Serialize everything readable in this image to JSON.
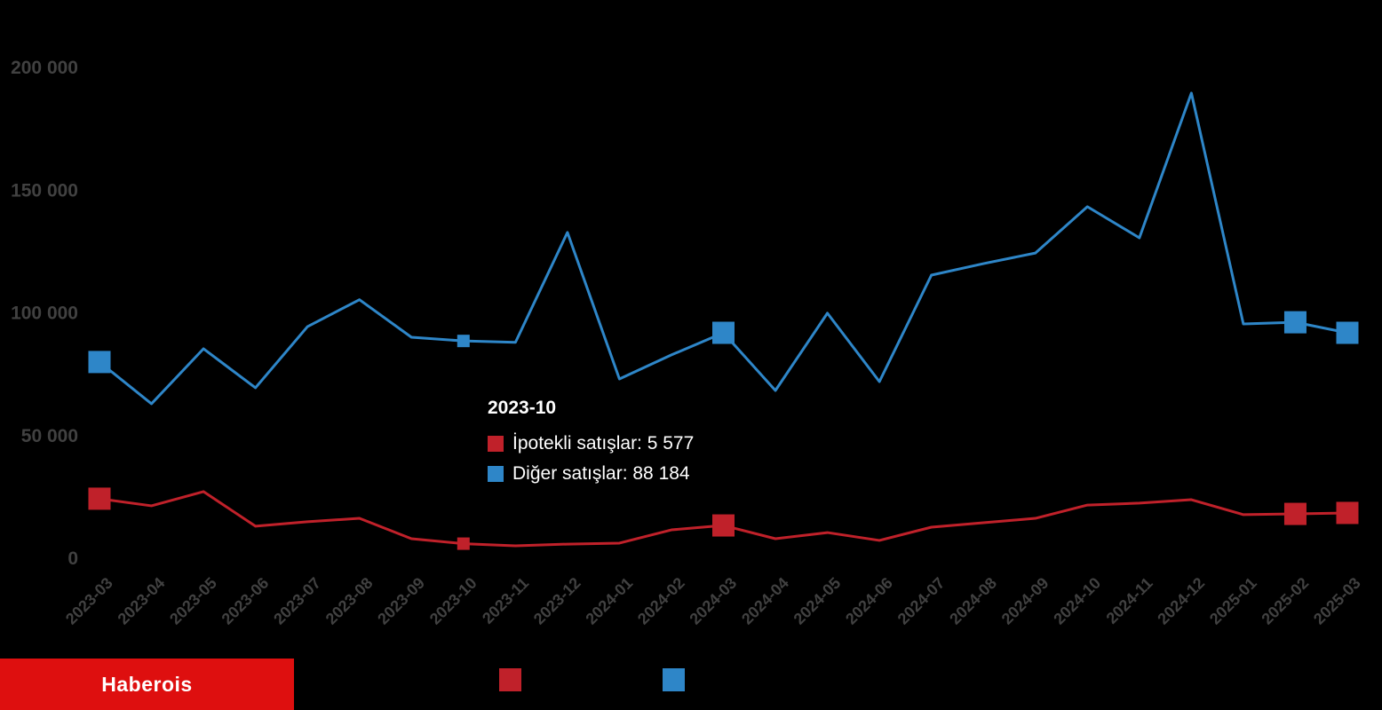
{
  "chart_data": {
    "type": "line",
    "x": [
      "2023-03",
      "2023-04",
      "2023-05",
      "2023-06",
      "2023-07",
      "2023-08",
      "2023-09",
      "2023-10",
      "2023-11",
      "2023-12",
      "2024-01",
      "2024-02",
      "2024-03",
      "2024-04",
      "2024-05",
      "2024-06",
      "2024-07",
      "2024-08",
      "2024-09",
      "2024-10",
      "2024-11",
      "2024-12",
      "2025-01",
      "2025-02",
      "2025-03"
    ],
    "series": [
      {
        "name": "Diğer satışlar",
        "color": "#2e86c8",
        "values": [
          79600,
          62600,
          85000,
          69100,
          94000,
          105000,
          89700,
          88184,
          87600,
          132400,
          72700,
          82500,
          91500,
          68000,
          99500,
          71600,
          115000,
          119700,
          124000,
          142900,
          130200,
          189200,
          95100,
          95800,
          91500
        ]
      },
      {
        "name": "İpotekli satışlar",
        "color": "#c0212a",
        "values": [
          23900,
          21000,
          26800,
          12700,
          14500,
          15900,
          7600,
          5577,
          4700,
          5400,
          5800,
          11200,
          13000,
          7600,
          10100,
          6900,
          12300,
          14100,
          15900,
          21300,
          22100,
          23500,
          17400,
          17700,
          18100
        ]
      }
    ],
    "ylim": [
      0,
      215000
    ],
    "yticks": [
      0,
      50000,
      100000,
      150000,
      200000
    ],
    "ytick_labels": [
      "0",
      "50 000",
      "100 000",
      "150 000",
      "200 000"
    ],
    "xtick_rotation_deg": -45,
    "grid": false,
    "axis_label_color": "#414141",
    "legend_position": "bottom",
    "large_marker_x": [
      "2023-03",
      "2024-03",
      "2025-02",
      "2025-03"
    ],
    "small_marker_x": [
      "2023-10"
    ]
  },
  "tooltip": {
    "title": "2023-10",
    "rows": [
      {
        "text": "İpotekli satışlar: 5 577",
        "swatch_color": "#c0212a"
      },
      {
        "text": "Diğer satışlar: 88 184",
        "swatch_color": "#2e86c8"
      }
    ]
  },
  "legend": {
    "label_color": "#000000",
    "items": [
      {
        "label": "İpotekli satışlar",
        "swatch_color": "#c0212a"
      },
      {
        "label": "Diğer satışlar",
        "swatch_color": "#2e86c8"
      }
    ]
  },
  "banner": {
    "text": "Haberois",
    "bg_color": "#de0f0f",
    "text_color": "#ffffff"
  }
}
